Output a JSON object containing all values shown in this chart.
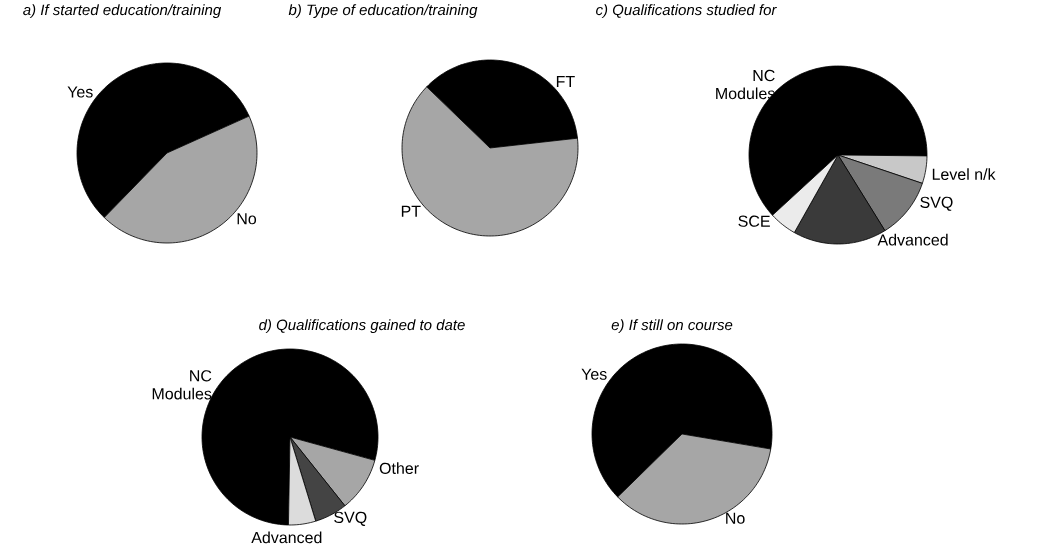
{
  "chart_data": [
    {
      "type": "pie",
      "title": "a) If started education/training",
      "categories": [
        "Yes",
        "No"
      ],
      "values": [
        56,
        44
      ],
      "colors": [
        "#000000",
        "#a6a6a6"
      ]
    },
    {
      "type": "pie",
      "title": "b) Type of education/training",
      "categories": [
        "FT",
        "PT"
      ],
      "values": [
        36,
        64
      ],
      "colors": [
        "#000000",
        "#a6a6a6"
      ]
    },
    {
      "type": "pie",
      "title": "c) Qualifications studied for",
      "categories": [
        "NC Modules",
        "Level n/k",
        "SVQ",
        "Advanced",
        "SCE"
      ],
      "values": [
        62,
        5,
        11,
        17,
        5
      ],
      "colors": [
        "#000000",
        "#c8c8c8",
        "#7a7a7a",
        "#3a3a3a",
        "#ebebeb"
      ]
    },
    {
      "type": "pie",
      "title": "d) Qualifications gained to date",
      "categories": [
        "NC Modules",
        "Other",
        "SVQ",
        "Advanced"
      ],
      "values": [
        79,
        10,
        6,
        5
      ],
      "colors": [
        "#000000",
        "#a6a6a6",
        "#444444",
        "#dcdcdc"
      ]
    },
    {
      "type": "pie",
      "title": "e) If still on course",
      "categories": [
        "Yes",
        "No"
      ],
      "values": [
        65,
        35
      ],
      "colors": [
        "#000000",
        "#a6a6a6"
      ]
    }
  ]
}
